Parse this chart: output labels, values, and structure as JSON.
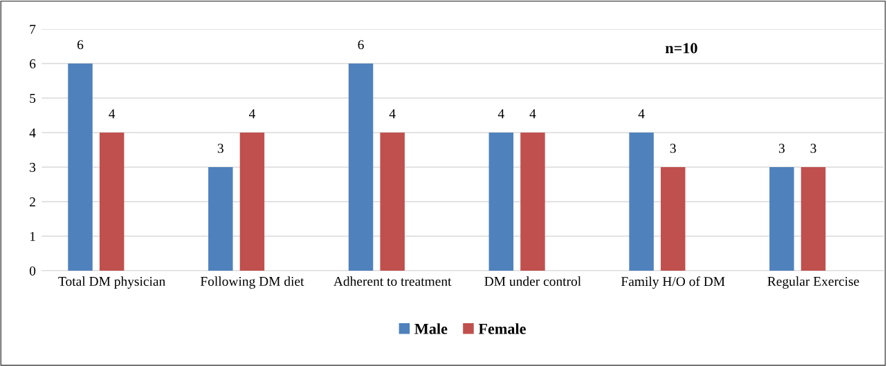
{
  "chart_data": {
    "type": "bar",
    "categories": [
      "Total DM physician",
      "Following DM diet",
      "Adherent to treatment",
      "DM under control",
      "Family H/O of DM",
      "Regular Exercise"
    ],
    "series": [
      {
        "name": "Male",
        "color": "#4f81bd",
        "values": [
          6,
          3,
          6,
          4,
          4,
          3
        ]
      },
      {
        "name": "Female",
        "color": "#c0504d",
        "values": [
          4,
          4,
          4,
          4,
          3,
          3
        ]
      }
    ],
    "ylim": [
      0,
      7
    ],
    "yticks": [
      0,
      1,
      2,
      3,
      4,
      5,
      6,
      7
    ],
    "grid": "y",
    "legend": "bottom",
    "data_labels": true,
    "annotations": [
      "n=10"
    ]
  }
}
